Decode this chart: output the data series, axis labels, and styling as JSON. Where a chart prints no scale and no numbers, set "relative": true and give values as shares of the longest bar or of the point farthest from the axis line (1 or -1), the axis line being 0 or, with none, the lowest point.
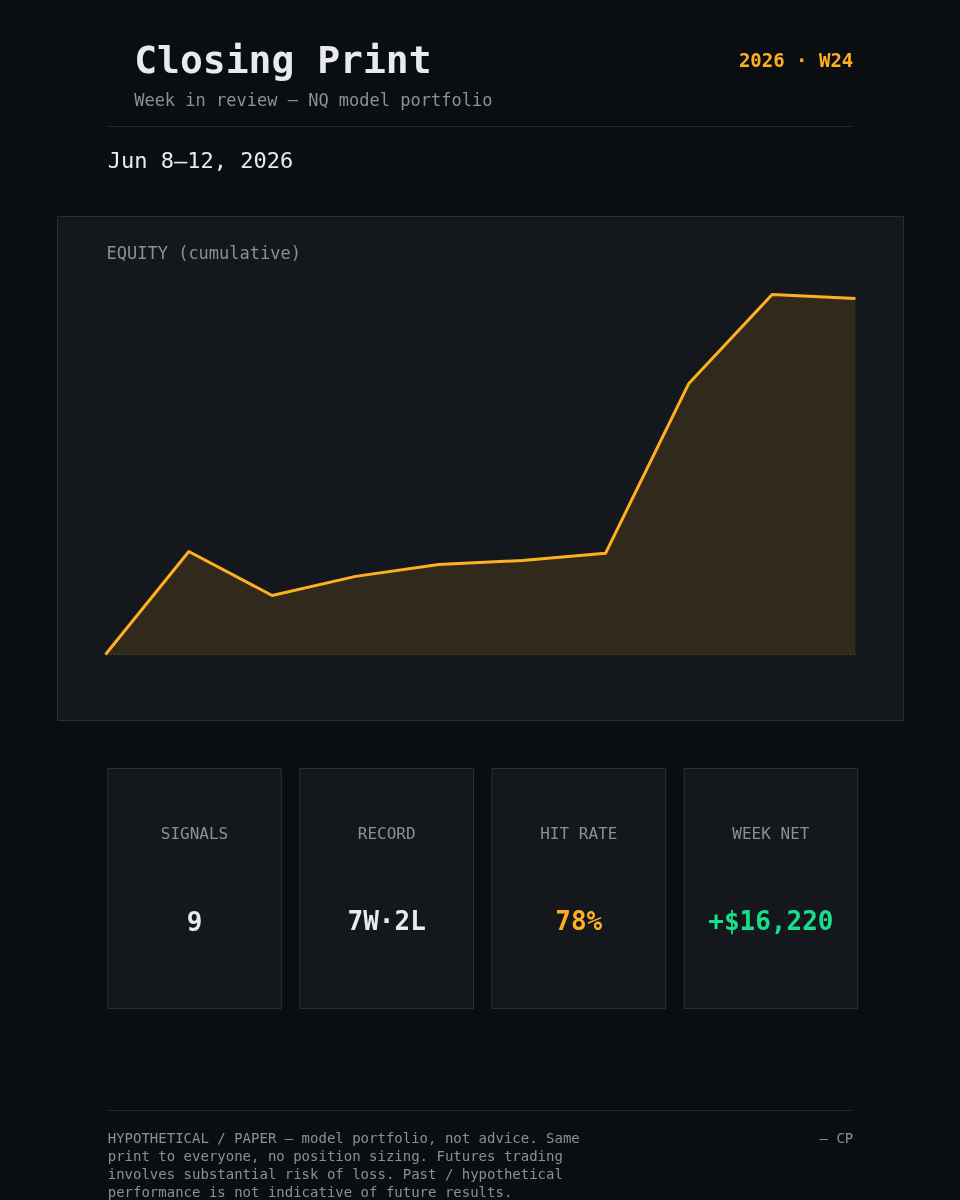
{
  "chart_data": [
    {
      "type": "area",
      "title": "Closing Print",
      "subtitle": "Week in review — NQ model portfolio",
      "ylabel": "EQUITY (cumulative)",
      "annotations": [
        "2026 · W24",
        "Jun 8–12, 2026"
      ],
      "relative": true,
      "categories": [
        null,
        null,
        null,
        null,
        null,
        null,
        null,
        null,
        null,
        null
      ],
      "series": [
        {
          "color": "#ffb020",
          "values": [
            0,
            0.286,
            0.164,
            0.217,
            0.25,
            0.261,
            0.281,
            0.753,
            1,
            0.989
          ]
        }
      ]
    },
    {
      "type": "other",
      "annotations": [
        "SIGNALS",
        "9",
        "RECORD",
        "7W·2L",
        "HIT RATE",
        "78%",
        "WEEK NET",
        "+$16,220",
        "HYPOTHETICAL / PAPER — model portfolio, not advice. Same print to everyone, no position sizing. Futures trading involves substantial risk of loss. Past / hypothetical performance is not indicative of future results.",
        "— CP"
      ],
      "colors": [
        "#e8eaed",
        "#e8eaed",
        "#ffb020",
        "#18e08a"
      ]
    }
  ]
}
